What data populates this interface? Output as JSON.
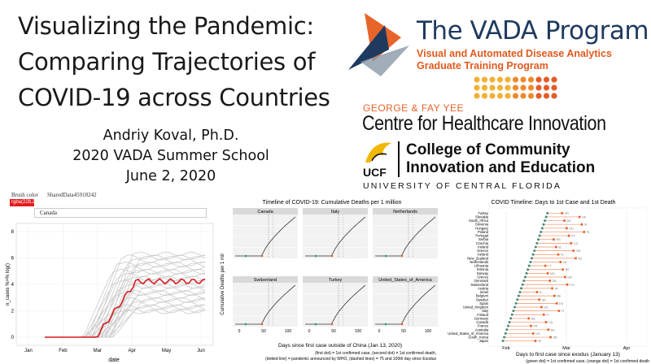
{
  "slide": {
    "title_lines": [
      "Visualizing the Pandemic:",
      "Comparing Trajectories of",
      "COVID-19 across Countries"
    ],
    "author": "Andriy Koval, Ph.D.",
    "event": "2020 VADA Summer School",
    "date": "June 2, 2020"
  },
  "logos": {
    "vada_name": "The VADA Program",
    "vada_sub1": "Visual and Automated Disease Analytics",
    "vada_sub2": "Graduate Training Program",
    "centre_top": "GEORGE & FAY YEE",
    "centre_name": "Centre for Healthcare Innovation",
    "college_line1": "College of Community",
    "college_line2": "Innovation and Education",
    "ucf_abbrev": "UCF",
    "ucf_full": "UNIVERSITY OF CENTRAL FLORIDA",
    "colors": {
      "vada_blue": "#1f3a5f",
      "vada_orange": "#e05a1e",
      "dots": "#f0a030"
    }
  },
  "left_chart": {
    "brush_label": "Brush color",
    "shared_label": "SharedData45918242",
    "color_value": "rgba(228,26",
    "country": "Canada",
    "y_label": "n_cases %>% log()",
    "x_label": "date",
    "y_ticks": [
      "0",
      "2",
      "4",
      "6",
      "8"
    ],
    "x_ticks": [
      "Jan",
      "Feb",
      "Mar",
      "Apr",
      "May",
      "Jun"
    ],
    "highlight_color": "#d7191c"
  },
  "mid_chart": {
    "title": "Timeline of COVID-19: Cumulative Deaths per 1 million",
    "y_label": "Cumulative Deaths per 1 mil",
    "x_label": "Days since first case outside of China (Jan 13, 2020)",
    "caption1": "(first dot) = 1st confirmed case, (second dot) = 1st confirmed death,",
    "caption2": "(dotted line) = pandemic announced by WHO, (dashed lines) = 75 and 100th day since Exodus",
    "panels": [
      "Canada",
      "Italy",
      "Netherlands",
      "Switzerland",
      "Turkey",
      "United_States_of_America"
    ],
    "x_ticks": [
      "0",
      "50",
      "100"
    ]
  },
  "right_chart": {
    "title": "COVID Timeline: Days to 1st Case and 1st Death",
    "x_label": "Days to first case since exodus (January 13)",
    "caption": "(green dot) = 1st confirmed case, (orange dot) = 1st confirmed death",
    "x_ticks": [
      "Feb",
      "Mar",
      "Apr"
    ],
    "countries": [
      "Turkey",
      "Slovakia",
      "South_Africa",
      "Slovenia",
      "Hungary",
      "Poland",
      "Portugal",
      "Serbia",
      "Czechia",
      "Ireland",
      "Greece",
      "Iceland",
      "New_Zealand",
      "Netherlands",
      "Lithuania",
      "Estonia",
      "Norway",
      "Greece",
      "Denmark",
      "Switzerland",
      "Austria",
      "Israel",
      "Belgium",
      "Sweden",
      "Spain",
      "United_Kingdom",
      "Italy",
      "Finland",
      "Germany",
      "Canada",
      "France",
      "Australia",
      "United_States_of_America",
      "South_Korea",
      "Japan"
    ],
    "codes": [
      "TR",
      "SK",
      "ZA",
      "SI",
      "HU",
      "PL",
      "PT",
      "RS",
      "CZ",
      "IE",
      "GR",
      "IS",
      "NZ",
      "NL",
      "LT",
      "EE",
      "NO",
      "GR",
      "DK",
      "CH",
      "AT",
      "IL",
      "BE",
      "SE",
      "ES",
      "UK",
      "IT",
      "FI",
      "DE",
      "CA",
      "FR",
      "AU",
      "US",
      "KR",
      "JP"
    ]
  }
}
